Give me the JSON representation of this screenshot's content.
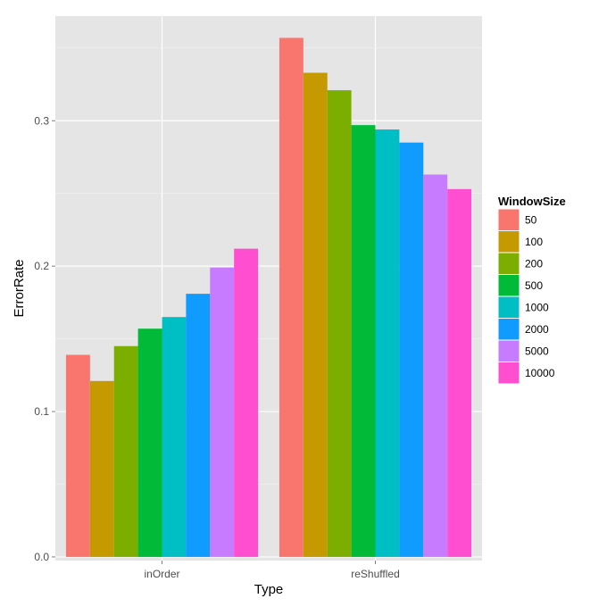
{
  "chart_data": {
    "type": "bar",
    "xlabel": "Type",
    "ylabel": "ErrorRate",
    "categories": [
      "inOrder",
      "reShuffled"
    ],
    "ylim": [
      -0.0025,
      0.372
    ],
    "yticks": [
      0.0,
      0.1,
      0.2,
      0.3
    ],
    "ytick_labels": [
      "0.0",
      "0.1",
      "0.2",
      "0.3"
    ],
    "grid": true,
    "legend": {
      "title": "WindowSize",
      "placement": "right"
    },
    "series": [
      {
        "name": "50",
        "color": "#F8766D",
        "values": [
          0.139,
          0.357
        ]
      },
      {
        "name": "100",
        "color": "#C49A00",
        "values": [
          0.121,
          0.333
        ]
      },
      {
        "name": "200",
        "color": "#7CAE00",
        "values": [
          0.145,
          0.321
        ]
      },
      {
        "name": "500",
        "color": "#00BA38",
        "values": [
          0.157,
          0.297
        ]
      },
      {
        "name": "1000",
        "color": "#00BFC4",
        "values": [
          0.165,
          0.294
        ]
      },
      {
        "name": "2000",
        "color": "#0F9BFF",
        "values": [
          0.181,
          0.285
        ]
      },
      {
        "name": "5000",
        "color": "#C77CFF",
        "values": [
          0.199,
          0.263
        ]
      },
      {
        "name": "10000",
        "color": "#FF4FD0",
        "values": [
          0.212,
          0.253
        ]
      }
    ]
  }
}
